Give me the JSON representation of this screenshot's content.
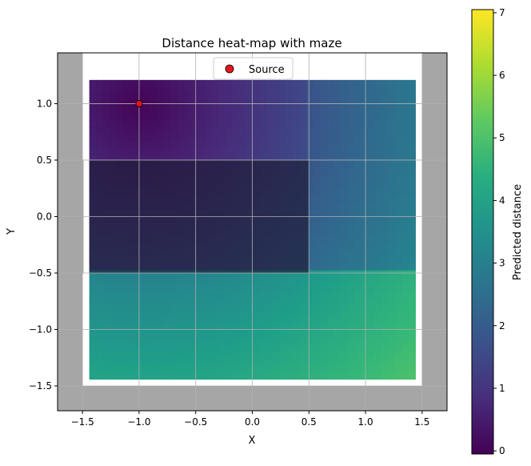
{
  "chart_data": {
    "type": "heatmap",
    "title": "Distance heat-map with maze",
    "xlabel": "X",
    "ylabel": "Y",
    "xlim": [
      -1.72,
      1.72
    ],
    "ylim": [
      -1.72,
      1.45
    ],
    "xticks": [
      -1.5,
      -1.0,
      -0.5,
      0.0,
      0.5,
      1.0,
      1.5
    ],
    "xtick_labels": [
      "−1.5",
      "−1.0",
      "−0.5",
      "0.0",
      "0.5",
      "1.0",
      "1.5"
    ],
    "yticks": [
      -1.5,
      -1.0,
      -0.5,
      0.0,
      0.5,
      1.0
    ],
    "ytick_labels": [
      "−1.5",
      "−1.0",
      "−0.5",
      "0.0",
      "0.5",
      "1.0"
    ],
    "grid": true,
    "heatmap_extent": {
      "x": [
        -1.44,
        1.44
      ],
      "y": [
        -1.44,
        1.21
      ]
    },
    "walls": [
      {
        "x": [
          -1.72,
          -1.5
        ],
        "y": [
          -1.72,
          1.45
        ]
      },
      {
        "x": [
          1.5,
          1.72
        ],
        "y": [
          -1.72,
          1.45
        ]
      },
      {
        "x": [
          -1.5,
          1.5
        ],
        "y": [
          -1.72,
          -1.5
        ]
      },
      {
        "x": [
          -1.5,
          -1.49
        ],
        "y": [
          -0.5,
          0.5
        ]
      }
    ],
    "obstacle": {
      "x": [
        -1.44,
        0.5
      ],
      "y": [
        -0.5,
        0.5
      ]
    },
    "source": {
      "name": "Source",
      "x": -1.0,
      "y": 1.0,
      "color": "#e8141c"
    },
    "legend": {
      "placement": "upper center",
      "entries": [
        "Source"
      ]
    },
    "colorbar": {
      "label": "Predicted distance",
      "range": [
        -0.05,
        7.05
      ],
      "ticks": [
        0,
        1,
        2,
        3,
        4,
        5,
        6,
        7
      ],
      "tick_labels": [
        "0",
        "1",
        "2",
        "3",
        "4",
        "5",
        "6",
        "7"
      ],
      "colormap": "viridis"
    },
    "colors": {
      "wall": "#a6a6a6",
      "grid": "#b0b0b0",
      "obstacle_overlay": "#1a1a2e"
    }
  }
}
